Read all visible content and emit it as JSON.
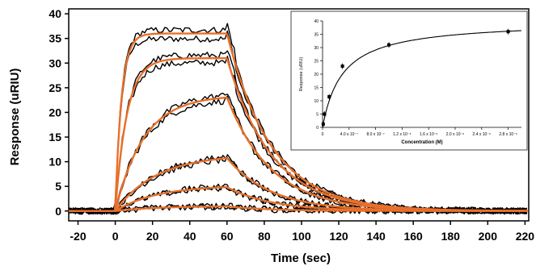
{
  "chart_data": [
    {
      "type": "line",
      "xlabel": "Time (sec)",
      "ylabel": "Response (uRIU)",
      "xlim": [
        -25,
        222
      ],
      "ylim": [
        -2,
        41
      ],
      "xticks": [
        -20,
        0,
        20,
        40,
        60,
        80,
        100,
        120,
        140,
        160,
        180,
        200,
        220
      ],
      "yticks": [
        0,
        5,
        10,
        15,
        20,
        25,
        30,
        35,
        40
      ],
      "grid": false,
      "injection_start": 0,
      "injection_end": 60,
      "series": [
        {
          "kind": "fit",
          "color": "#e8702a",
          "plateau": 36.0,
          "kon_rate": 0.3,
          "koff_rate": 0.042
        },
        {
          "kind": "fit",
          "color": "#e8702a",
          "plateau": 31.0,
          "kon_rate": 0.16,
          "koff_rate": 0.042
        },
        {
          "kind": "fit",
          "color": "#e8702a",
          "plateau": 23.5,
          "kon_rate": 0.065,
          "koff_rate": 0.042
        },
        {
          "kind": "fit",
          "color": "#e8702a",
          "plateau": 11.5,
          "kon_rate": 0.045,
          "koff_rate": 0.042
        },
        {
          "kind": "fit",
          "color": "#e8702a",
          "plateau": 5.2,
          "kon_rate": 0.045,
          "koff_rate": 0.042
        },
        {
          "kind": "fit",
          "color": "#e8702a",
          "plateau": 1.0,
          "kon_rate": 0.045,
          "koff_rate": 0.042
        }
      ],
      "data_color": "#000000"
    },
    {
      "type": "scatter",
      "xlabel": "Concentration (M)",
      "ylabel": "Response (uRIU)",
      "xlim": [
        0,
        3e-06
      ],
      "ylim": [
        0,
        40
      ],
      "xtick_labels": [
        "0",
        "4.0 x 10⁻⁷",
        "8.0 x 10⁻⁷",
        "1.2 x 10⁻⁶",
        "1.6 x 10⁻⁶",
        "2.0 x 10⁻⁶",
        "2.4 x 10⁻⁶",
        "2.8 x 10⁻⁶"
      ],
      "xtick_values": [
        0,
        4e-07,
        8e-07,
        1.2e-06,
        1.6e-06,
        2e-06,
        2.4e-06,
        2.8e-06
      ],
      "yticks": [
        0,
        5,
        10,
        15,
        20,
        25,
        30,
        35,
        40
      ],
      "points": [
        {
          "x": 1e-08,
          "y": 1.2
        },
        {
          "x": 3e-08,
          "y": 5.0
        },
        {
          "x": 1e-07,
          "y": 11.5
        },
        {
          "x": 3e-07,
          "y": 23.0
        },
        {
          "x": 1e-06,
          "y": 31.0
        },
        {
          "x": 2.8e-06,
          "y": 36.0
        }
      ],
      "fit": {
        "model": "langmuir",
        "Rmax": 40.0,
        "KD": 3e-07
      }
    }
  ]
}
